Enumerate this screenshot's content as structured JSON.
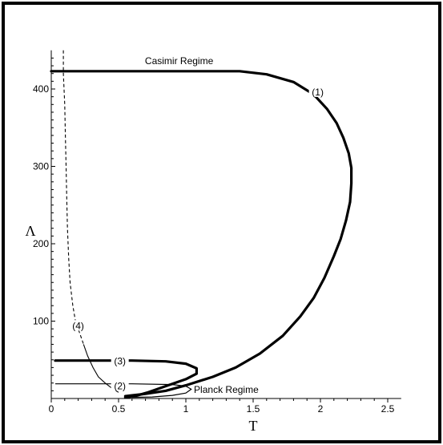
{
  "chart_data": {
    "type": "line",
    "title": "",
    "xlabel": "T",
    "ylabel": "Λ",
    "xlim": [
      0,
      2.6
    ],
    "ylim": [
      0,
      450
    ],
    "x_ticks": [
      "0",
      "0.5",
      "1",
      "1.5",
      "2",
      "2.5"
    ],
    "y_ticks": [
      "100",
      "200",
      "300",
      "400"
    ],
    "grid": false,
    "annotations": [
      {
        "text": "Casimir Regime",
        "x": 0.95,
        "y": 432
      },
      {
        "text": "Planck Regime",
        "x": 1.3,
        "y": 7
      }
    ],
    "series": [
      {
        "label": "(1)",
        "style": "thick-solid",
        "points": [
          [
            0.0,
            423
          ],
          [
            0.5,
            423
          ],
          [
            1.0,
            423
          ],
          [
            1.4,
            423
          ],
          [
            1.6,
            419
          ],
          [
            1.8,
            409
          ],
          [
            1.95,
            393
          ],
          [
            2.05,
            374
          ],
          [
            2.12,
            356
          ],
          [
            2.17,
            337
          ],
          [
            2.21,
            317
          ],
          [
            2.23,
            298
          ],
          [
            2.23,
            278
          ],
          [
            2.22,
            254
          ],
          [
            2.19,
            230
          ],
          [
            2.15,
            206
          ],
          [
            2.1,
            184
          ],
          [
            2.03,
            156
          ],
          [
            1.95,
            130
          ],
          [
            1.85,
            106
          ],
          [
            1.72,
            81
          ],
          [
            1.55,
            58
          ],
          [
            1.37,
            40
          ],
          [
            1.2,
            28
          ],
          [
            1.0,
            17
          ],
          [
            0.85,
            10
          ],
          [
            0.7,
            6
          ],
          [
            0.6,
            4
          ],
          [
            0.55,
            3
          ]
        ],
        "label_pos": [
          1.98,
          396
        ]
      },
      {
        "label": "(2)",
        "style": "thin-solid",
        "points": [
          [
            0.03,
            19
          ],
          [
            0.3,
            19
          ],
          [
            0.6,
            19
          ],
          [
            0.9,
            18
          ],
          [
            1.0,
            16
          ],
          [
            1.04,
            12
          ],
          [
            1.0,
            7
          ],
          [
            0.9,
            4
          ],
          [
            0.75,
            2
          ],
          [
            0.6,
            1.5
          ]
        ],
        "label_pos": [
          0.51,
          16
        ]
      },
      {
        "label": "(3)",
        "style": "thick-solid",
        "points": [
          [
            0.03,
            49
          ],
          [
            0.3,
            49
          ],
          [
            0.6,
            49
          ],
          [
            0.85,
            48
          ],
          [
            1.0,
            45
          ],
          [
            1.08,
            39
          ],
          [
            1.08,
            32
          ],
          [
            1.0,
            25
          ],
          [
            0.85,
            16
          ],
          [
            0.72,
            8
          ],
          [
            0.62,
            3
          ],
          [
            0.55,
            1.5
          ]
        ],
        "label_pos": [
          0.51,
          48
        ]
      },
      {
        "label": "(4)",
        "style": "dashed-then-thin",
        "points": [
          [
            0.09,
            450
          ],
          [
            0.09,
            420
          ],
          [
            0.1,
            380
          ],
          [
            0.105,
            340
          ],
          [
            0.11,
            300
          ],
          [
            0.115,
            260
          ],
          [
            0.12,
            220
          ],
          [
            0.13,
            180
          ],
          [
            0.14,
            150
          ],
          [
            0.16,
            120
          ],
          [
            0.18,
            100
          ],
          [
            0.21,
            85
          ],
          [
            0.24,
            70
          ],
          [
            0.27,
            55
          ],
          [
            0.31,
            40
          ],
          [
            0.35,
            28
          ],
          [
            0.4,
            20
          ],
          [
            0.46,
            12
          ],
          [
            0.5,
            8
          ]
        ],
        "dash_until_index": 12,
        "label_pos": [
          0.2,
          94
        ]
      }
    ]
  }
}
